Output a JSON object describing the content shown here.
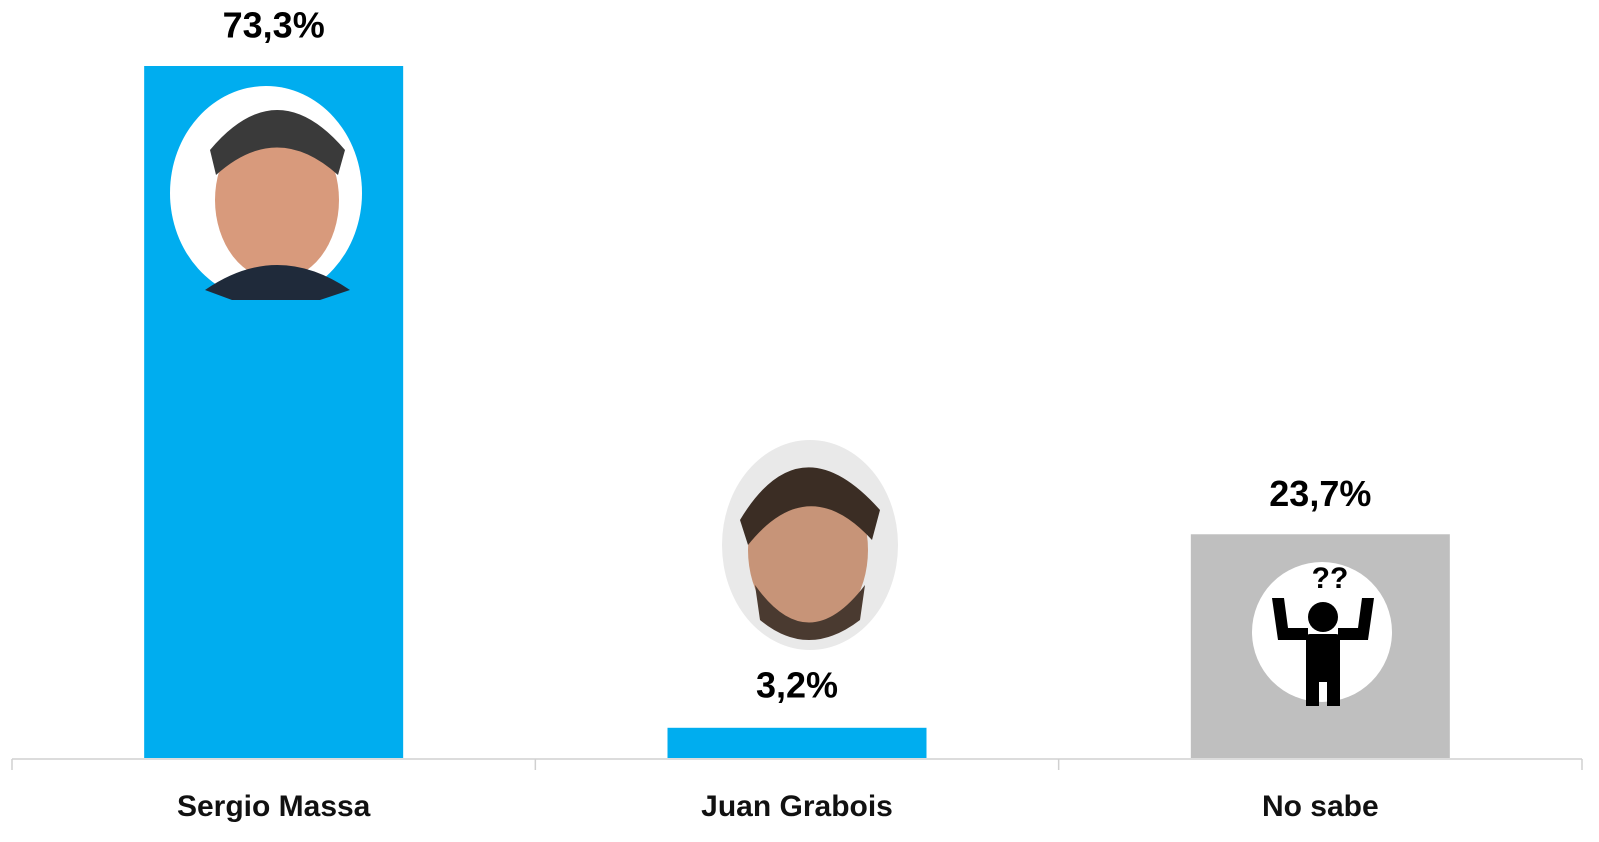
{
  "chart_data": {
    "type": "bar",
    "categories": [
      "Sergio Massa",
      "Juan Grabois",
      "No sabe"
    ],
    "values": [
      73.3,
      3.2,
      23.7
    ],
    "value_labels": [
      "73,3%",
      "3,2%",
      "23,7%"
    ],
    "colors": [
      "#00adef",
      "#00adef",
      "#bfbfbf"
    ]
  }
}
